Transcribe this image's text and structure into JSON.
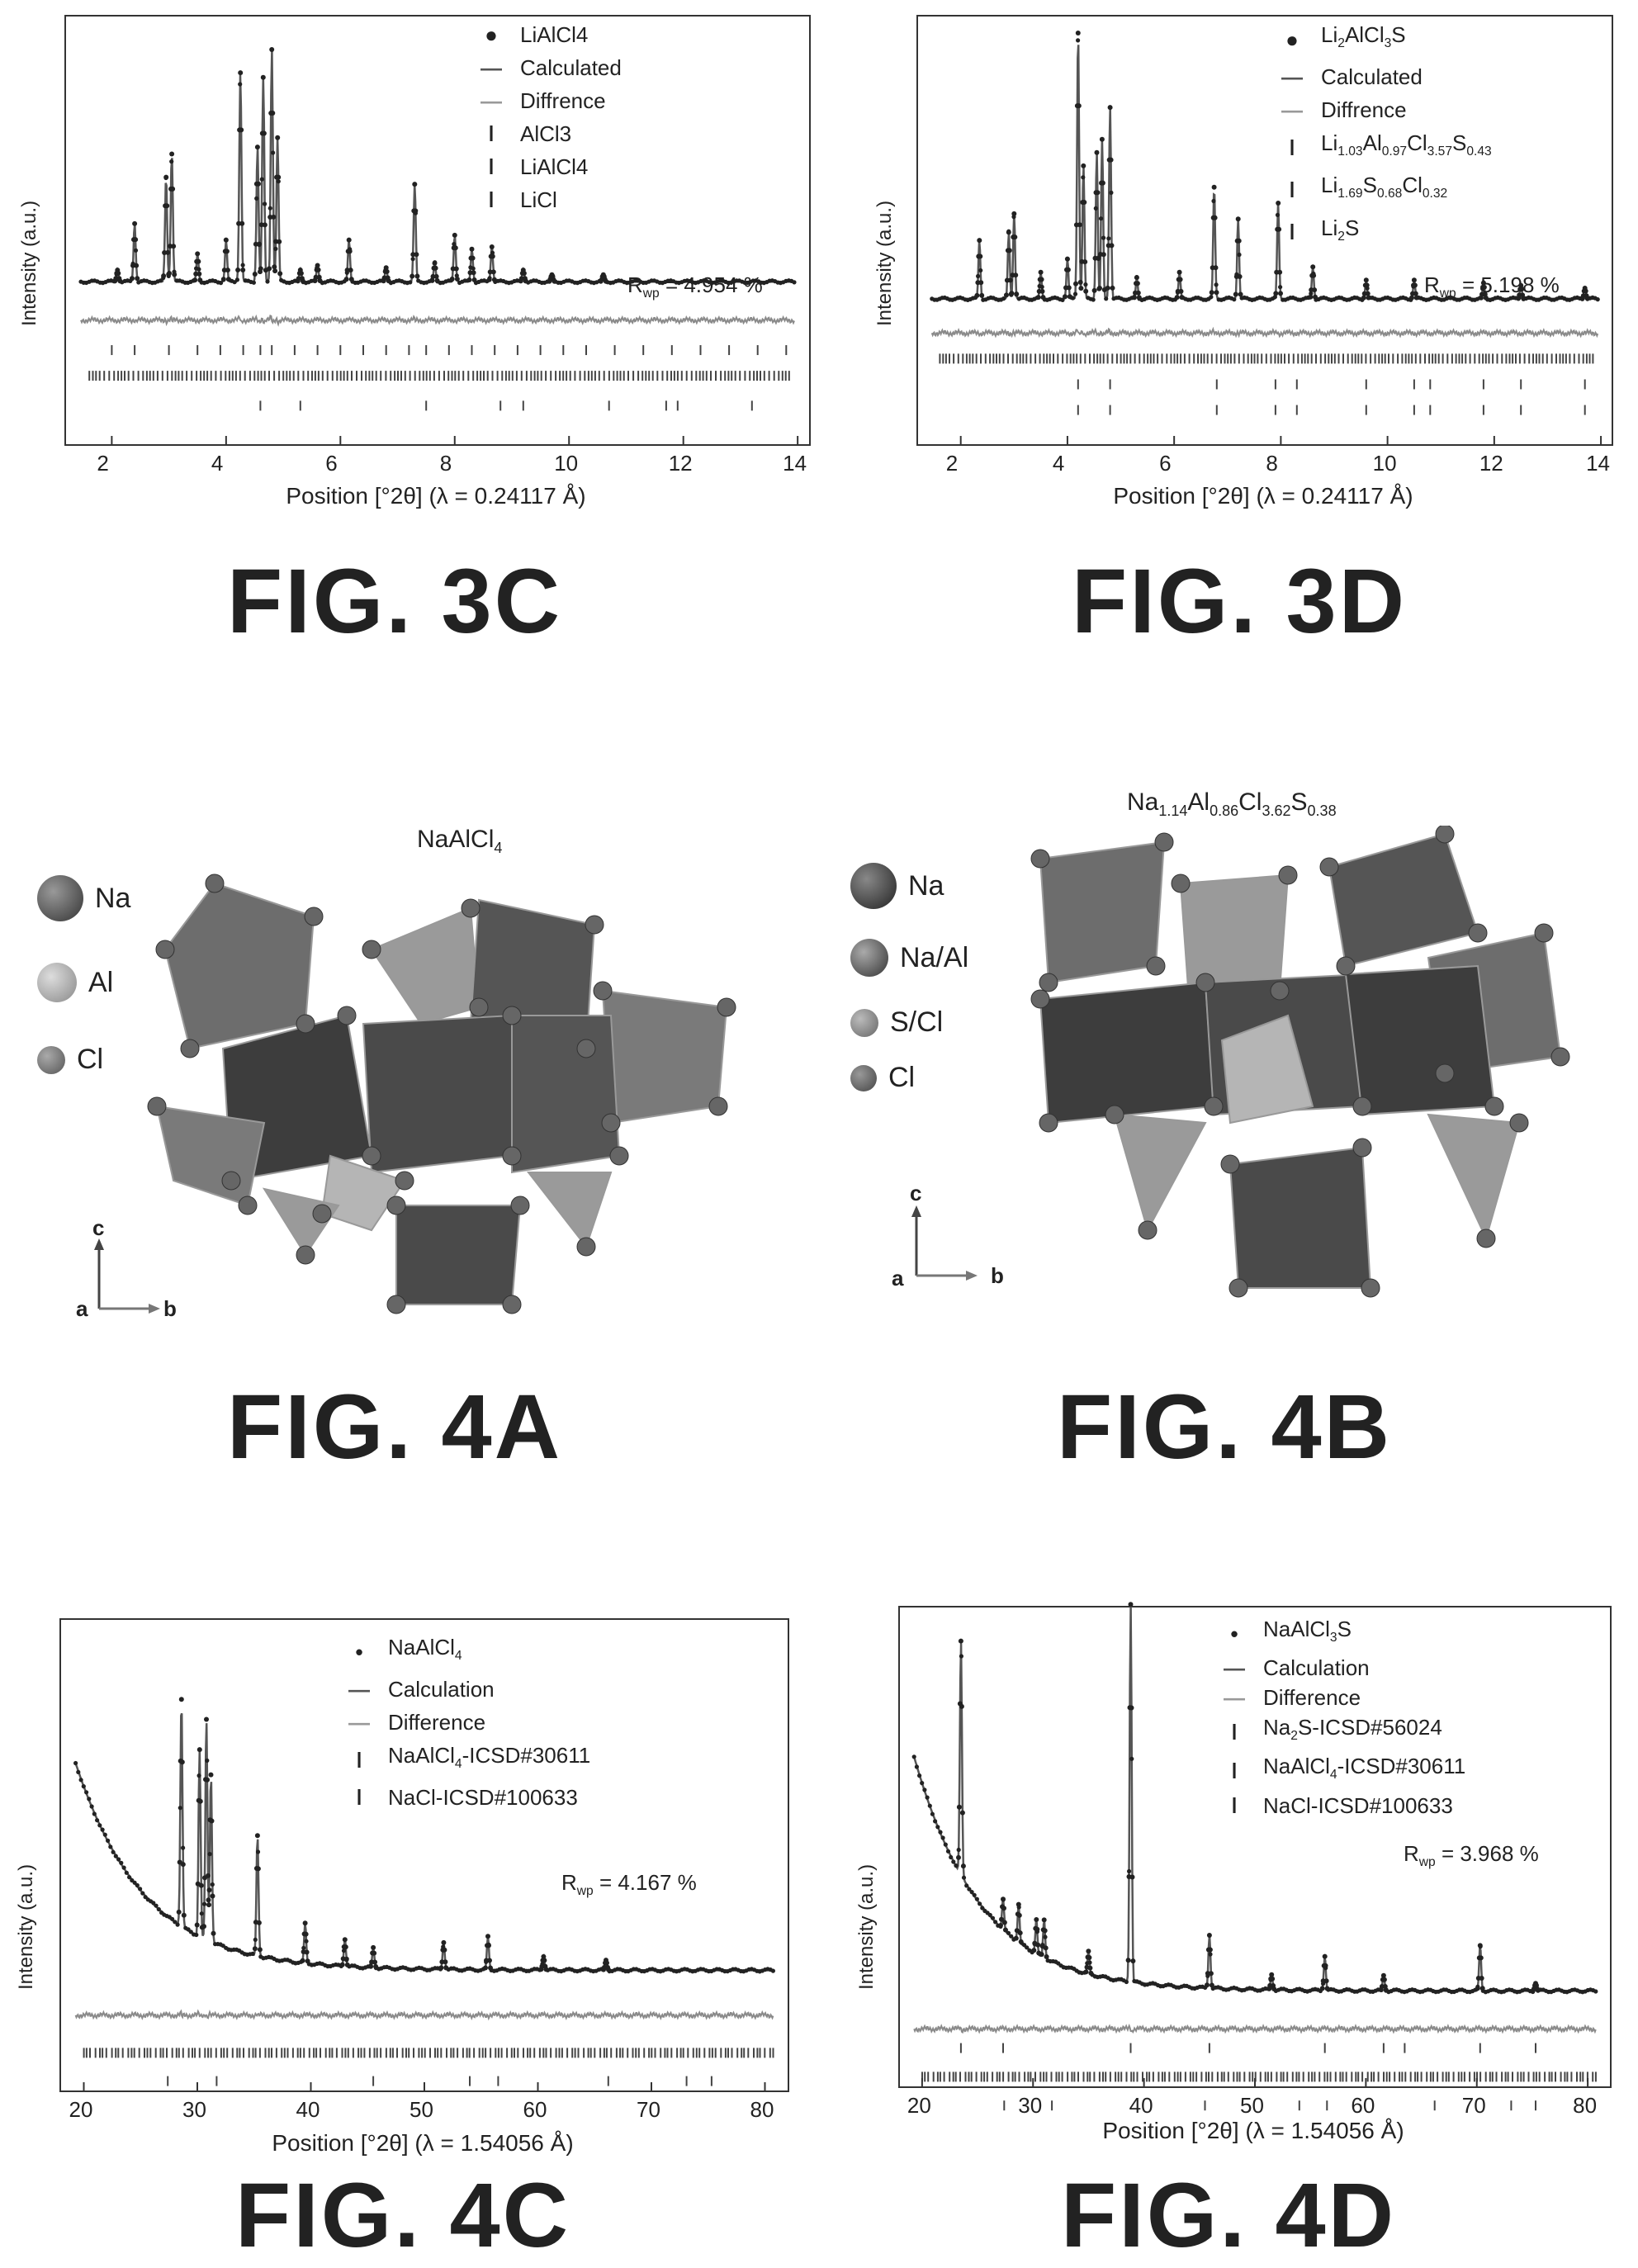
{
  "colors": {
    "data": "#222222",
    "calc": "#555555",
    "diff": "#8a8a8a",
    "ticks": "#444444"
  },
  "figures": {
    "f3c": {
      "label": "FIG. 3C",
      "legend": [
        "LiAlCl4",
        "Calculated",
        "Diffrence",
        "AlCl3",
        "LiAlCl4",
        "LiCl"
      ],
      "rwp": "R",
      "rwp_sub": "wp",
      "rwp_val": " = 4.954 %",
      "ylabel": "Intensity (a.u.)",
      "xlabel": "Position [°2θ] (λ = 0.24117 Å)",
      "xticks": [
        "2",
        "4",
        "6",
        "8",
        "10",
        "12",
        "14"
      ]
    },
    "f3d": {
      "label": "FIG. 3D",
      "legend": [
        "Li2AlCl3S",
        "Calculated",
        "Diffrence",
        "Li1.03Al0.97Cl3.57S0.43",
        "Li1.69S0.68Cl0.32",
        "Li2S"
      ],
      "rwp": "R",
      "rwp_sub": "wp",
      "rwp_val": " = 5.198 %",
      "ylabel": "Intensity (a.u.)",
      "xlabel": "Position [°2θ] (λ = 0.24117 Å)",
      "xticks": [
        "2",
        "4",
        "6",
        "8",
        "10",
        "12",
        "14"
      ]
    },
    "f4a": {
      "label": "FIG. 4A",
      "title": "NaAlCl4",
      "atoms": [
        "Na",
        "Al",
        "Cl"
      ],
      "axes": {
        "c": "c",
        "a": "a",
        "b": "b"
      }
    },
    "f4b": {
      "label": "FIG. 4B",
      "title": "Na1.14Al0.86Cl3.62S0.38",
      "atoms": [
        "Na",
        "Na/Al",
        "S/Cl",
        "Cl"
      ],
      "axes": {
        "c": "c",
        "a": "a",
        "b": "b"
      }
    },
    "f4c": {
      "label": "FIG. 4C",
      "legend": [
        "NaAlCl4",
        "Calculation",
        "Difference",
        "NaAlCl4-ICSD#30611",
        "NaCl-ICSD#100633"
      ],
      "rwp": "R",
      "rwp_sub": "wp",
      "rwp_val": " = 4.167 %",
      "ylabel": "Intensity (a.u.)",
      "xlabel": "Position [°2θ] (λ = 1.54056 Å)",
      "xticks": [
        "20",
        "30",
        "40",
        "50",
        "60",
        "70",
        "80"
      ]
    },
    "f4d": {
      "label": "FIG. 4D",
      "legend": [
        "NaAlCl3S",
        "Calculation",
        "Difference",
        "Na2S-ICSD#56024",
        "NaAlCl4-ICSD#30611",
        "NaCl-ICSD#100633"
      ],
      "rwp": "R",
      "rwp_sub": "wp",
      "rwp_val": " = 3.968 %",
      "ylabel": "Intensity (a.u.)",
      "xlabel": "Position [°2θ] (λ = 1.54056 Å)",
      "xticks": [
        "20",
        "30",
        "40",
        "50",
        "60",
        "70",
        "80"
      ]
    }
  },
  "chart_data": [
    {
      "type": "line",
      "id": "f3c",
      "xlim": [
        1.2,
        14.2
      ],
      "series": [
        {
          "name": "LiAlCl4",
          "values": []
        },
        {
          "name": "Calculated",
          "values": []
        },
        {
          "name": "Diffrence",
          "values": []
        }
      ],
      "peaks": [
        [
          2.1,
          0.05
        ],
        [
          2.4,
          0.25
        ],
        [
          2.95,
          0.45
        ],
        [
          3.05,
          0.55
        ],
        [
          3.5,
          0.12
        ],
        [
          4.0,
          0.18
        ],
        [
          4.25,
          0.9
        ],
        [
          4.55,
          0.58
        ],
        [
          4.65,
          0.88
        ],
        [
          4.8,
          1.0
        ],
        [
          4.9,
          0.62
        ],
        [
          5.3,
          0.05
        ],
        [
          5.6,
          0.07
        ],
        [
          6.15,
          0.18
        ],
        [
          6.8,
          0.06
        ],
        [
          7.3,
          0.42
        ],
        [
          7.65,
          0.08
        ],
        [
          8.0,
          0.2
        ],
        [
          8.3,
          0.14
        ],
        [
          8.65,
          0.15
        ],
        [
          9.2,
          0.05
        ],
        [
          9.7,
          0.03
        ],
        [
          10.6,
          0.03
        ]
      ],
      "baseline": 0.1,
      "ticks": [
        [
          2.0,
          2.4,
          3.0,
          3.5,
          3.9,
          4.3,
          4.6,
          4.8,
          5.2,
          5.6,
          6.0,
          6.4,
          6.8,
          7.2,
          7.5,
          7.9,
          8.3,
          8.7,
          9.1,
          9.5,
          9.9,
          10.3,
          10.8,
          11.3,
          11.8,
          12.3,
          12.8,
          13.3,
          13.8
        ],
        "dense",
        [
          4.6,
          5.3,
          7.5,
          8.8,
          9.2,
          10.7,
          11.7,
          11.9,
          13.2
        ]
      ]
    },
    {
      "type": "line",
      "id": "f3d",
      "xlim": [
        1.2,
        14.2
      ],
      "series": [
        {
          "name": "Li2AlCl3S",
          "values": []
        },
        {
          "name": "Calculated",
          "values": []
        },
        {
          "name": "Diffrence",
          "values": []
        }
      ],
      "peaks": [
        [
          2.35,
          0.22
        ],
        [
          2.9,
          0.25
        ],
        [
          3.0,
          0.32
        ],
        [
          3.5,
          0.1
        ],
        [
          4.0,
          0.15
        ],
        [
          4.2,
          1.0
        ],
        [
          4.3,
          0.5
        ],
        [
          4.55,
          0.55
        ],
        [
          4.65,
          0.6
        ],
        [
          4.8,
          0.72
        ],
        [
          5.3,
          0.08
        ],
        [
          6.1,
          0.1
        ],
        [
          6.75,
          0.42
        ],
        [
          7.2,
          0.3
        ],
        [
          7.95,
          0.36
        ],
        [
          8.6,
          0.12
        ],
        [
          9.6,
          0.07
        ],
        [
          10.5,
          0.07
        ],
        [
          11.8,
          0.06
        ],
        [
          12.5,
          0.05
        ],
        [
          13.7,
          0.04
        ]
      ],
      "baseline": 0.1,
      "ticks": [
        "dense",
        [
          4.2,
          4.8,
          6.8,
          7.9,
          8.3,
          9.6,
          10.5,
          10.8,
          11.8,
          12.5,
          13.7
        ],
        [
          4.2,
          4.8,
          6.8,
          7.9,
          8.3,
          9.6,
          10.5,
          10.8,
          11.8,
          12.5,
          13.7
        ]
      ]
    },
    {
      "type": "line",
      "id": "f4c",
      "xlim": [
        18,
        82
      ],
      "series": [
        {
          "name": "NaAlCl4",
          "values": []
        },
        {
          "name": "Calculation",
          "values": []
        },
        {
          "name": "Difference",
          "values": []
        }
      ],
      "peaks": [
        [
          28.6,
          0.68
        ],
        [
          30.2,
          0.56
        ],
        [
          30.8,
          0.66
        ],
        [
          31.2,
          0.5
        ],
        [
          35.3,
          0.36
        ],
        [
          39.5,
          0.12
        ],
        [
          43.0,
          0.08
        ],
        [
          45.5,
          0.06
        ],
        [
          51.7,
          0.08
        ],
        [
          55.6,
          0.1
        ],
        [
          60.5,
          0.04
        ],
        [
          66.0,
          0.03
        ]
      ],
      "background": "decay",
      "ticks": [
        "dense",
        [
          27.4,
          31.7,
          45.5,
          54.0,
          56.5,
          66.2,
          73.1,
          75.3
        ]
      ]
    },
    {
      "type": "line",
      "id": "f4d",
      "xlim": [
        18,
        82
      ],
      "series": [
        {
          "name": "NaAlCl3S",
          "values": []
        },
        {
          "name": "Calculation",
          "values": []
        },
        {
          "name": "Difference",
          "values": []
        }
      ],
      "peaks": [
        [
          23.5,
          0.62
        ],
        [
          27.3,
          0.08
        ],
        [
          28.7,
          0.1
        ],
        [
          30.3,
          0.09
        ],
        [
          31.0,
          0.1
        ],
        [
          35.0,
          0.06
        ],
        [
          38.8,
          1.0
        ],
        [
          45.9,
          0.14
        ],
        [
          51.5,
          0.04
        ],
        [
          56.3,
          0.09
        ],
        [
          61.6,
          0.04
        ],
        [
          70.3,
          0.12
        ],
        [
          75.3,
          0.02
        ]
      ],
      "background": "decay",
      "ticks": [
        [
          23.5,
          27.3,
          38.8,
          45.9,
          56.3,
          61.6,
          63.5,
          70.3,
          75.3
        ],
        "dense",
        [
          27.4,
          31.7,
          45.5,
          54.0,
          56.5,
          66.2,
          73.1,
          75.3
        ]
      ]
    }
  ]
}
